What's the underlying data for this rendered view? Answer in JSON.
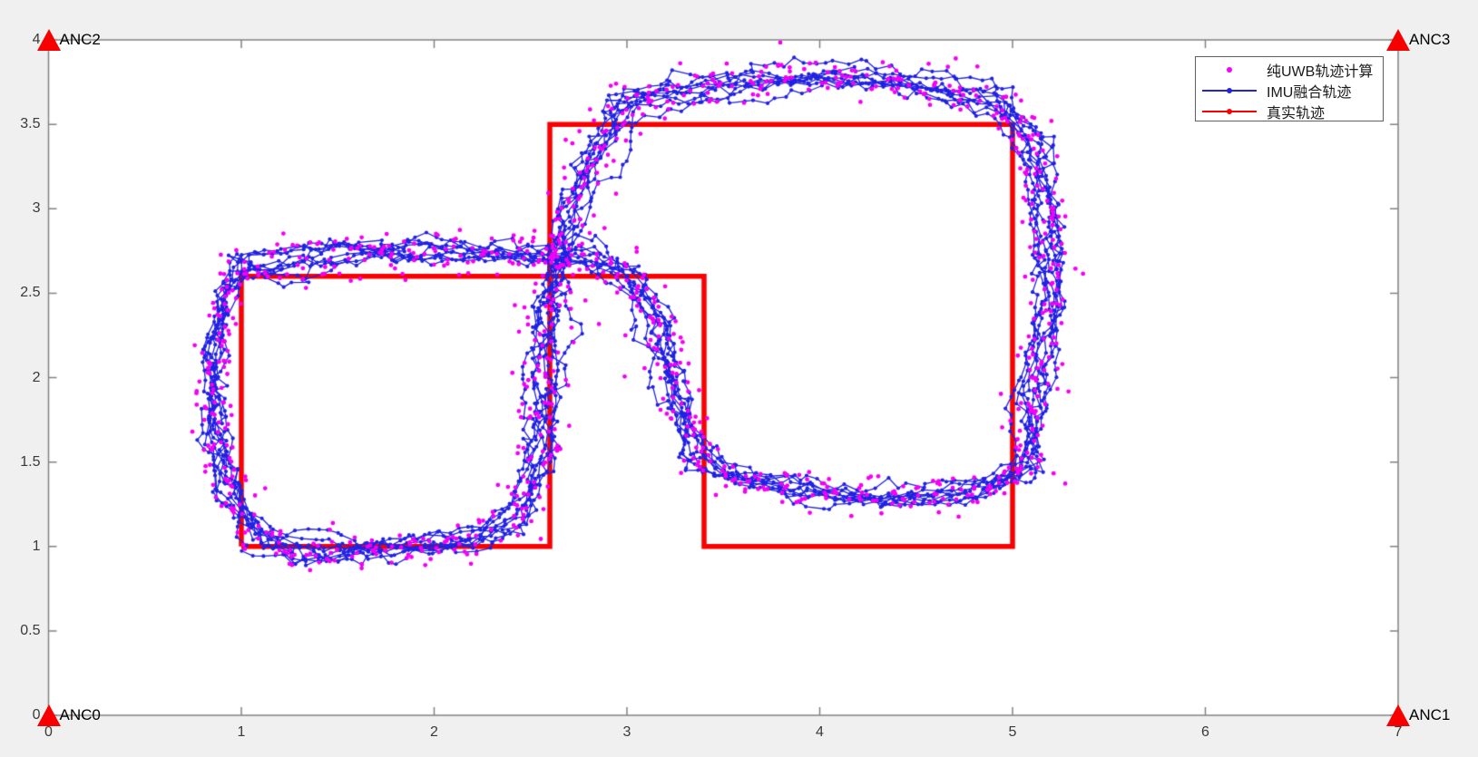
{
  "figure": {
    "background": "#f0f0f0"
  },
  "axes": {
    "box_color": "#828282",
    "tick_label_color": "#3a3a3a",
    "x_ticks": {
      "labels": [
        "0",
        "1",
        "2",
        "3",
        "4",
        "5",
        "6",
        "7"
      ]
    },
    "y_ticks": {
      "labels": [
        "0",
        "0.5",
        "1",
        "1.5",
        "2",
        "2.5",
        "3",
        "3.5",
        "4"
      ]
    }
  },
  "chart_data": {
    "type": "line",
    "title": "",
    "xlabel": "",
    "ylabel": "",
    "xlim": [
      0,
      7
    ],
    "ylim": [
      0,
      4
    ],
    "xticks": [
      0,
      1,
      2,
      3,
      4,
      5,
      6,
      7
    ],
    "yticks": [
      0,
      0.5,
      1,
      1.5,
      2,
      2.5,
      3,
      3.5,
      4
    ],
    "grid": false,
    "legend_position": "top-right",
    "anchors": [
      {
        "label": "ANC0",
        "x": 0,
        "y": 0
      },
      {
        "label": "ANC1",
        "x": 7,
        "y": 0
      },
      {
        "label": "ANC2",
        "x": 0,
        "y": 4
      },
      {
        "label": "ANC3",
        "x": 7,
        "y": 4
      }
    ],
    "anchor_marker": {
      "shape": "triangle-up",
      "color": "#f80000",
      "width": 26,
      "height": 24
    },
    "series": [
      {
        "name": "纯UWB轨迹计算",
        "type": "scatter",
        "color": "#f400f4",
        "marker": "dot",
        "marker_radius": 2.4,
        "sim": {
          "step": 0.13,
          "noise": 0.05
        }
      },
      {
        "name": "IMU融合轨迹",
        "type": "line+marker",
        "color": "#2222e2",
        "marker": "dot",
        "line_width": 1.3,
        "marker_radius": 2.1,
        "sim": {
          "step": 0.052,
          "noise": 0.016
        }
      },
      {
        "name": "真实轨迹",
        "type": "line",
        "color": "#fb0000",
        "line_width": 5.5,
        "segments": [
          [
            [
              1,
              1
            ],
            [
              2.6,
              1
            ],
            [
              2.6,
              2.6
            ],
            [
              1,
              2.6
            ],
            [
              1,
              1
            ]
          ],
          [
            [
              2.6,
              2.6
            ],
            [
              2.6,
              3.5
            ],
            [
              5,
              3.5
            ],
            [
              5,
              1
            ],
            [
              3.4,
              1
            ],
            [
              3.4,
              2.6
            ],
            [
              2.6,
              2.6
            ]
          ]
        ]
      }
    ],
    "simulation": {
      "seed": 20,
      "laps": 9,
      "waypoint_jitter": 0.055,
      "lap_waypoints": [
        [
          1.02,
          2.66
        ],
        [
          0.92,
          2.5
        ],
        [
          0.86,
          2.1
        ],
        [
          0.87,
          1.65
        ],
        [
          0.95,
          1.25
        ],
        [
          1.1,
          1.03
        ],
        [
          1.45,
          0.97
        ],
        [
          1.85,
          0.98
        ],
        [
          2.2,
          1.03
        ],
        [
          2.45,
          1.18
        ],
        [
          2.55,
          1.55
        ],
        [
          2.57,
          2.0
        ],
        [
          2.6,
          2.4
        ],
        [
          2.63,
          2.62
        ],
        [
          2.73,
          2.98
        ],
        [
          2.83,
          3.32
        ],
        [
          2.98,
          3.6
        ],
        [
          3.3,
          3.72
        ],
        [
          3.7,
          3.78
        ],
        [
          4.15,
          3.79
        ],
        [
          4.6,
          3.72
        ],
        [
          4.95,
          3.62
        ],
        [
          5.12,
          3.4
        ],
        [
          5.17,
          2.95
        ],
        [
          5.19,
          2.45
        ],
        [
          5.14,
          1.9
        ],
        [
          5.06,
          1.5
        ],
        [
          4.8,
          1.3
        ],
        [
          4.4,
          1.27
        ],
        [
          3.95,
          1.33
        ],
        [
          3.6,
          1.4
        ],
        [
          3.35,
          1.55
        ],
        [
          3.22,
          1.95
        ],
        [
          3.14,
          2.35
        ],
        [
          3.05,
          2.63
        ],
        [
          2.8,
          2.73
        ],
        [
          2.4,
          2.74
        ],
        [
          1.95,
          2.72
        ],
        [
          1.5,
          2.7
        ],
        [
          1.2,
          2.67
        ]
      ]
    }
  }
}
